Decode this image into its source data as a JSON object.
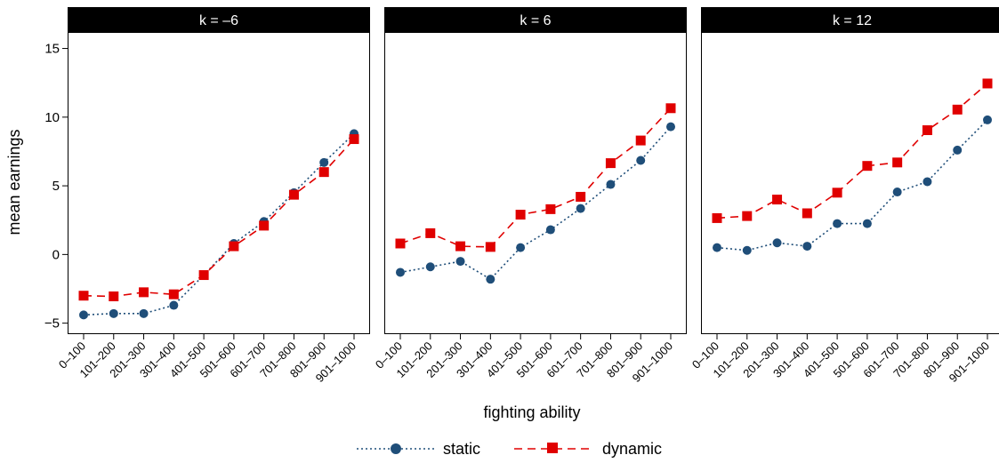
{
  "chart_data": {
    "type": "line",
    "xlabel": "fighting ability",
    "ylabel": "mean earnings",
    "ylim": [
      -5.8,
      16.2
    ],
    "yticks": [
      -5,
      0,
      5,
      10,
      15
    ],
    "grid": false,
    "legend_position": "bottom",
    "categories": [
      "0–100",
      "101–200",
      "201–300",
      "301–400",
      "401–500",
      "501–600",
      "601–700",
      "701–800",
      "801–900",
      "901–1000"
    ],
    "series_styles": [
      {
        "name": "static",
        "color": "#1f4e79",
        "marker": "circle",
        "dash": "2,3"
      },
      {
        "name": "dynamic",
        "color": "#e00000",
        "marker": "square",
        "dash": "9,6"
      }
    ],
    "panels": [
      {
        "title": "k = –6",
        "series": [
          {
            "name": "static",
            "values": [
              -4.4,
              -4.3,
              -4.3,
              -3.7,
              -1.5,
              0.8,
              2.4,
              4.5,
              6.7,
              8.8
            ]
          },
          {
            "name": "dynamic",
            "values": [
              -3.0,
              -3.05,
              -2.75,
              -2.9,
              -1.5,
              0.6,
              2.1,
              4.35,
              6.0,
              8.4
            ]
          }
        ]
      },
      {
        "title": "k = 6",
        "series": [
          {
            "name": "static",
            "values": [
              -1.3,
              -0.9,
              -0.5,
              -1.8,
              0.5,
              1.8,
              3.35,
              5.1,
              6.85,
              9.3
            ]
          },
          {
            "name": "dynamic",
            "values": [
              0.8,
              1.55,
              0.6,
              0.55,
              2.9,
              3.3,
              4.2,
              6.65,
              8.3,
              10.65
            ]
          }
        ]
      },
      {
        "title": "k = 12",
        "series": [
          {
            "name": "static",
            "values": [
              0.5,
              0.3,
              0.85,
              0.6,
              2.25,
              2.25,
              4.55,
              5.3,
              7.6,
              9.8
            ]
          },
          {
            "name": "dynamic",
            "values": [
              2.65,
              2.8,
              4.0,
              3.0,
              4.5,
              6.45,
              6.7,
              9.05,
              10.55,
              12.45
            ]
          }
        ]
      }
    ]
  }
}
